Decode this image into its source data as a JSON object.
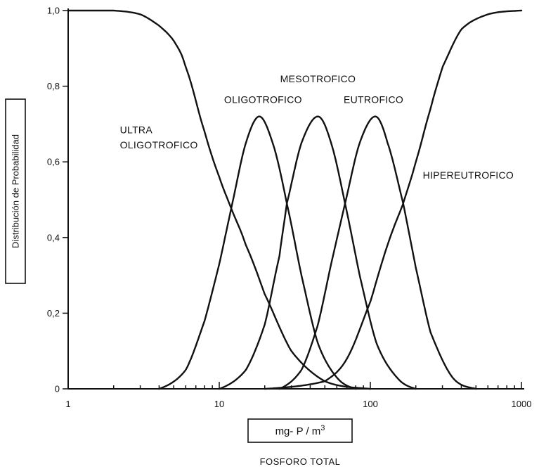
{
  "chart_data": {
    "type": "line",
    "x_scale": "log",
    "xlim": [
      1,
      1000
    ],
    "ylim": [
      0,
      1.0
    ],
    "xticks": [
      {
        "value": 1,
        "label": "1"
      },
      {
        "value": 10,
        "label": "10"
      },
      {
        "value": 100,
        "label": "100"
      },
      {
        "value": 1000,
        "label": "1000"
      }
    ],
    "yticks": [
      {
        "value": 0,
        "label": "0"
      },
      {
        "value": 0.2,
        "label": "0,2"
      },
      {
        "value": 0.4,
        "label": "0,4"
      },
      {
        "value": 0.6,
        "label": "0,6"
      },
      {
        "value": 0.8,
        "label": "0,8"
      },
      {
        "value": 1.0,
        "label": "1,0"
      }
    ],
    "ylabel": "Distribución de Probabilidad",
    "xlabel_unit": {
      "base": "mg- P / m",
      "sup": "3"
    },
    "xlabel_subtitle": "FOSFORO TOTAL",
    "grid": false,
    "legend": "none",
    "series": [
      {
        "name": "ULTRA OLIGOTROFICO",
        "shape": "decreasing",
        "x": [
          1,
          2,
          3,
          4,
          5,
          6,
          8,
          10,
          12.2,
          15,
          20,
          30,
          50,
          100
        ],
        "y": [
          1.0,
          1.0,
          0.99,
          0.96,
          0.92,
          0.85,
          0.68,
          0.56,
          0.47,
          0.38,
          0.25,
          0.1,
          0.02,
          0.0
        ]
      },
      {
        "name": "OLIGOTROFICO",
        "shape": "bell",
        "x": [
          4,
          6,
          8,
          10,
          12.2,
          15,
          18.5,
          23,
          28,
          35,
          45,
          60,
          80
        ],
        "y": [
          0.0,
          0.05,
          0.18,
          0.33,
          0.49,
          0.65,
          0.72,
          0.64,
          0.49,
          0.3,
          0.12,
          0.03,
          0.0
        ]
      },
      {
        "name": "MESOTROFICO",
        "shape": "bell",
        "x": [
          10,
          15,
          20,
          25,
          28,
          35,
          45,
          55,
          68,
          85,
          110,
          150,
          200
        ],
        "y": [
          0.0,
          0.05,
          0.17,
          0.35,
          0.49,
          0.65,
          0.72,
          0.65,
          0.49,
          0.3,
          0.12,
          0.03,
          0.0
        ]
      },
      {
        "name": "EUTROFICO",
        "shape": "bell",
        "x": [
          25,
          35,
          45,
          55,
          68,
          85,
          108,
          130,
          165,
          200,
          250,
          350,
          500
        ],
        "y": [
          0.0,
          0.05,
          0.17,
          0.33,
          0.49,
          0.65,
          0.72,
          0.65,
          0.49,
          0.32,
          0.15,
          0.03,
          0.0
        ]
      },
      {
        "name": "HIPEREUTROFICO",
        "shape": "increasing",
        "x": [
          20,
          50,
          70,
          100,
          130,
          165,
          200,
          250,
          300,
          400,
          600,
          1000
        ],
        "y": [
          0.0,
          0.02,
          0.08,
          0.23,
          0.38,
          0.49,
          0.6,
          0.74,
          0.85,
          0.95,
          0.99,
          1.0
        ]
      }
    ],
    "annotations": [
      {
        "lines": [
          "ULTRA",
          "OLIGOTROFICO"
        ],
        "series": "ULTRA OLIGOTROFICO"
      },
      {
        "lines": [
          "OLIGOTROFICO"
        ],
        "series": "OLIGOTROFICO"
      },
      {
        "lines": [
          "MESOTROFICO"
        ],
        "series": "MESOTROFICO"
      },
      {
        "lines": [
          "EUTROFICO"
        ],
        "series": "EUTROFICO"
      },
      {
        "lines": [
          "HIPEREUTROFICO"
        ],
        "series": "HIPEREUTROFICO"
      }
    ]
  }
}
